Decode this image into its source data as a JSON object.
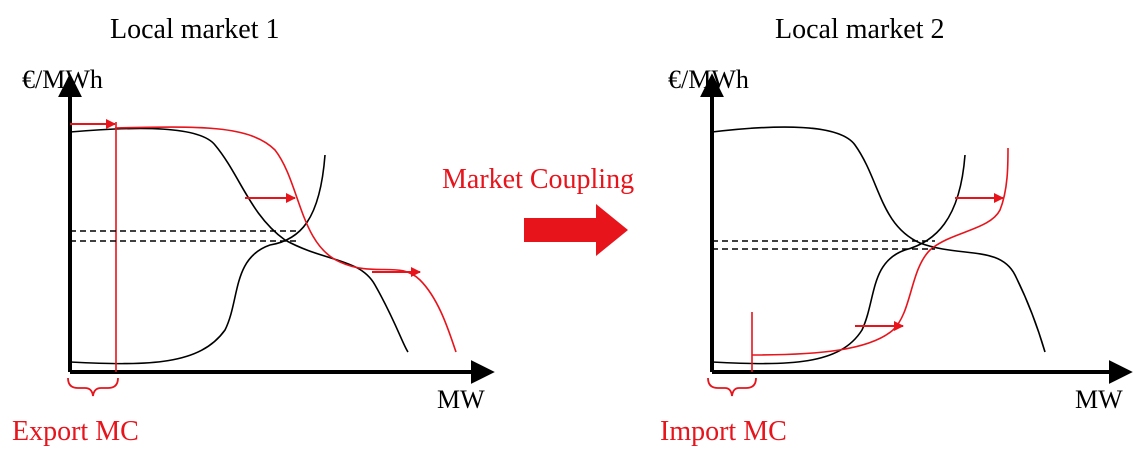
{
  "left_panel": {
    "title": "Local market 1",
    "y_unit": "€/MWh",
    "x_unit": "MW",
    "bracket_label": "Export MC"
  },
  "right_panel": {
    "title": "Local market 2",
    "y_unit": "€/MWh",
    "x_unit": "MW",
    "bracket_label": "Import MC"
  },
  "center": {
    "label": "Market Coupling"
  },
  "colors": {
    "accent": "#e8141c",
    "ink": "#000000",
    "background": "#ffffff"
  }
}
